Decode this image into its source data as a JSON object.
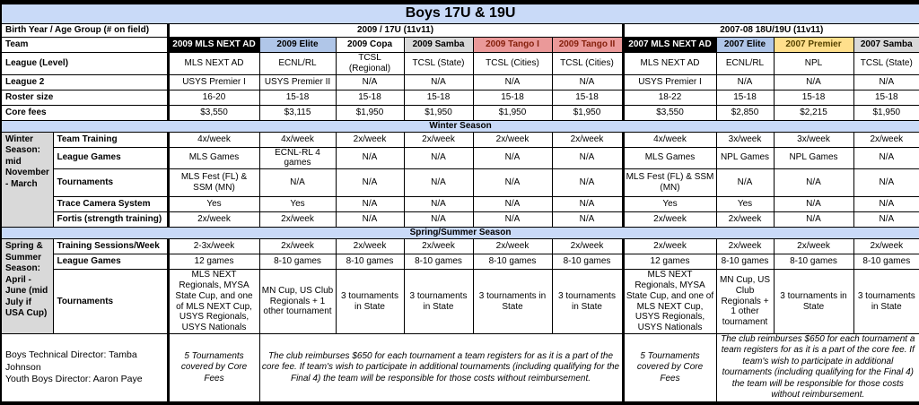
{
  "title": "Boys 17U & 19U",
  "age_header": {
    "label": "Birth Year / Age Group (# on field)",
    "group_2009": "2009 / 17U (11v11)",
    "group_2007": "2007-08 18U/19U (11v11)"
  },
  "team_header": {
    "label": "Team",
    "teams": [
      {
        "name": "2009 MLS NEXT AD",
        "bg": "#000000",
        "fg": "#ffffff"
      },
      {
        "name": "2009 Elite",
        "bg": "#b0c6e8",
        "fg": "#000000"
      },
      {
        "name": "2009 Copa",
        "bg": "#ffffff",
        "fg": "#000000"
      },
      {
        "name": "2009 Samba",
        "bg": "#d9d9d9",
        "fg": "#000000"
      },
      {
        "name": "2009 Tango I",
        "bg": "#ea9999",
        "fg": "#85200c"
      },
      {
        "name": "2009 Tango II",
        "bg": "#ea9999",
        "fg": "#85200c"
      },
      {
        "name": "2007 MLS NEXT AD",
        "bg": "#000000",
        "fg": "#ffffff"
      },
      {
        "name": "2007 Elite",
        "bg": "#b0c6e8",
        "fg": "#000000"
      },
      {
        "name": "2007 Premier",
        "bg": "#ffdf8c",
        "fg": "#554200"
      },
      {
        "name": "2007 Samba",
        "bg": "#d9d9d9",
        "fg": "#000000"
      }
    ]
  },
  "info_rows": [
    {
      "label": "League (Level)",
      "values": [
        "MLS NEXT AD",
        "ECNL/RL",
        "TCSL (Regional)",
        "TCSL (State)",
        "TCSL (Cities)",
        "TCSL (Cities)",
        "MLS NEXT AD",
        "ECNL/RL",
        "NPL",
        "TCSL (State)"
      ]
    },
    {
      "label": "League 2",
      "values": [
        "USYS Premier I",
        "USYS Premier II",
        "N/A",
        "N/A",
        "N/A",
        "N/A",
        "USYS Premier I",
        "N/A",
        "N/A",
        "N/A"
      ]
    },
    {
      "label": "Roster size",
      "values": [
        "16-20",
        "15-18",
        "15-18",
        "15-18",
        "15-18",
        "15-18",
        "18-22",
        "15-18",
        "15-18",
        "15-18"
      ]
    },
    {
      "label": "Core fees",
      "values": [
        "$3,550",
        "$3,115",
        "$1,950",
        "$1,950",
        "$1,950",
        "$1,950",
        "$3,550",
        "$2,850",
        "$2,215",
        "$1,950"
      ]
    }
  ],
  "winter_section": {
    "title": "Winter Season",
    "sidebar": "Winter Season: mid November - March",
    "rows": [
      {
        "label": "Team Training",
        "values": [
          "4x/week",
          "4x/week",
          "2x/week",
          "2x/week",
          "2x/week",
          "2x/week",
          "4x/week",
          "3x/week",
          "3x/week",
          "2x/week"
        ]
      },
      {
        "label": "League Games",
        "values": [
          "MLS Games",
          "ECNL-RL 4 games",
          "N/A",
          "N/A",
          "N/A",
          "N/A",
          "MLS Games",
          "NPL Games",
          "NPL Games",
          "N/A"
        ]
      },
      {
        "label": "Tournaments",
        "values": [
          "MLS Fest (FL) & SSM (MN)",
          "N/A",
          "N/A",
          "N/A",
          "N/A",
          "N/A",
          "MLS Fest (FL) & SSM (MN)",
          "N/A",
          "N/A",
          "N/A"
        ]
      },
      {
        "label": "Trace Camera System",
        "values": [
          "Yes",
          "Yes",
          "N/A",
          "N/A",
          "N/A",
          "N/A",
          "Yes",
          "Yes",
          "N/A",
          "N/A"
        ]
      },
      {
        "label": "Fortis (strength training)",
        "values": [
          "2x/week",
          "2x/week",
          "N/A",
          "N/A",
          "N/A",
          "N/A",
          "2x/week",
          "2x/week",
          "N/A",
          "N/A"
        ]
      }
    ]
  },
  "spring_section": {
    "title": "Spring/Summer Season",
    "sidebar": "Spring & Summer Season: April - June (mid July if USA Cup)",
    "rows": [
      {
        "label": "Training Sessions/Week",
        "values": [
          "2-3x/week",
          "2x/week",
          "2x/week",
          "2x/week",
          "2x/week",
          "2x/week",
          "2x/week",
          "2x/week",
          "2x/week",
          "2x/week"
        ]
      },
      {
        "label": "League Games",
        "values": [
          "12 games",
          "8-10 games",
          "8-10 games",
          "8-10 games",
          "8-10 games",
          "8-10 games",
          "12 games",
          "8-10 games",
          "8-10 games",
          "8-10 games"
        ]
      },
      {
        "label": "Tournaments",
        "values": [
          "MLS NEXT Regionals, MYSA State Cup, and one of MLS NEXT Cup, USYS Regionals, USYS Nationals",
          "MN Cup, US Club Regionals + 1 other tournament",
          "3 tournaments in State",
          "3 tournaments in State",
          "3 tournaments in State",
          "3 tournaments in State",
          "MLS NEXT Regionals, MYSA State Cup, and one of MLS NEXT Cup, USYS Regionals, USYS Nationals",
          "MN Cup, US Club Regionals + 1 other tournament",
          "3 tournaments in State",
          "3 tournaments in State"
        ]
      }
    ]
  },
  "footer": {
    "directors": [
      "Boys Technical Director: Tamba Johnson",
      "Youth Boys Director: Aaron Paye"
    ],
    "core_fee_note_2009": "5 Tournaments covered by Core Fees",
    "reimbursement_note_2009": "The club reimburses $650 for each tournament a team registers for as it is a part of the core fee. If team's wish to participate in additional tournaments (including qualifying for the Final 4) the team will be responsible for those costs without reimbursement.",
    "core_fee_note_2007": "5 Tournaments covered by Core Fees",
    "reimbursement_note_2007": "The club reimburses $650 for each tournament a team registers for as it is a part of the core fee. If team's wish to participate in additional tournaments (including qualifying for the Final 4) the team will be responsible for those costs without reimbursement."
  }
}
